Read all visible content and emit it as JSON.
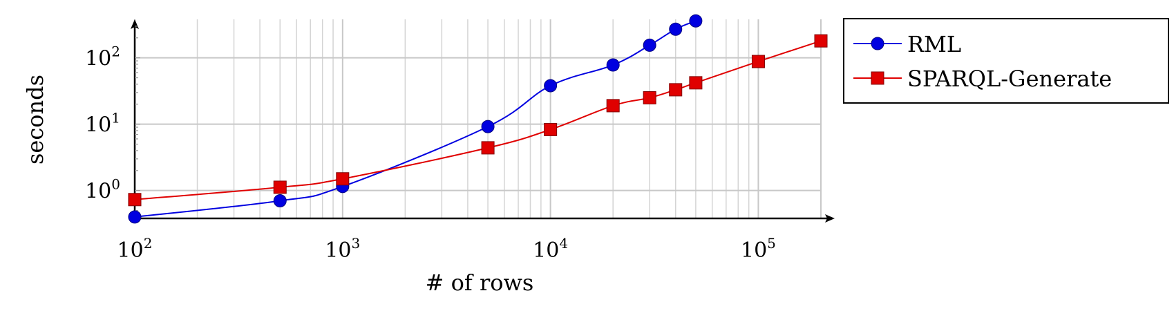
{
  "chart_data": {
    "type": "line",
    "title": "",
    "xlabel": "# of rows",
    "ylabel": "seconds",
    "xscale": "log",
    "yscale": "log",
    "xlim": [
      100,
      200000
    ],
    "ylim": [
      0.38,
      380
    ],
    "grid": "major and minor",
    "legend_position": "outside-right-top",
    "x_ticks": [
      {
        "base": "10",
        "exp": "2",
        "value": 100
      },
      {
        "base": "10",
        "exp": "3",
        "value": 1000
      },
      {
        "base": "10",
        "exp": "4",
        "value": 10000
      },
      {
        "base": "10",
        "exp": "5",
        "value": 100000
      }
    ],
    "y_ticks": [
      {
        "base": "10",
        "exp": "0",
        "value": 1
      },
      {
        "base": "10",
        "exp": "1",
        "value": 10
      },
      {
        "base": "10",
        "exp": "2",
        "value": 100
      }
    ],
    "series": [
      {
        "name": "RML",
        "color": "#0000e0",
        "marker": "circle",
        "x": [
          100,
          500,
          1000,
          5000,
          10000,
          20000,
          30000,
          40000,
          50000
        ],
        "y": [
          0.4,
          0.7,
          1.15,
          9.2,
          38,
          78,
          155,
          270,
          360
        ]
      },
      {
        "name": "SPARQL-Generate",
        "color": "#e00000",
        "marker": "square",
        "x": [
          100,
          500,
          1000,
          5000,
          10000,
          20000,
          30000,
          40000,
          50000,
          100000,
          200000
        ],
        "y": [
          0.73,
          1.12,
          1.5,
          4.4,
          8.3,
          19,
          25,
          33,
          42,
          88,
          180
        ]
      }
    ]
  }
}
